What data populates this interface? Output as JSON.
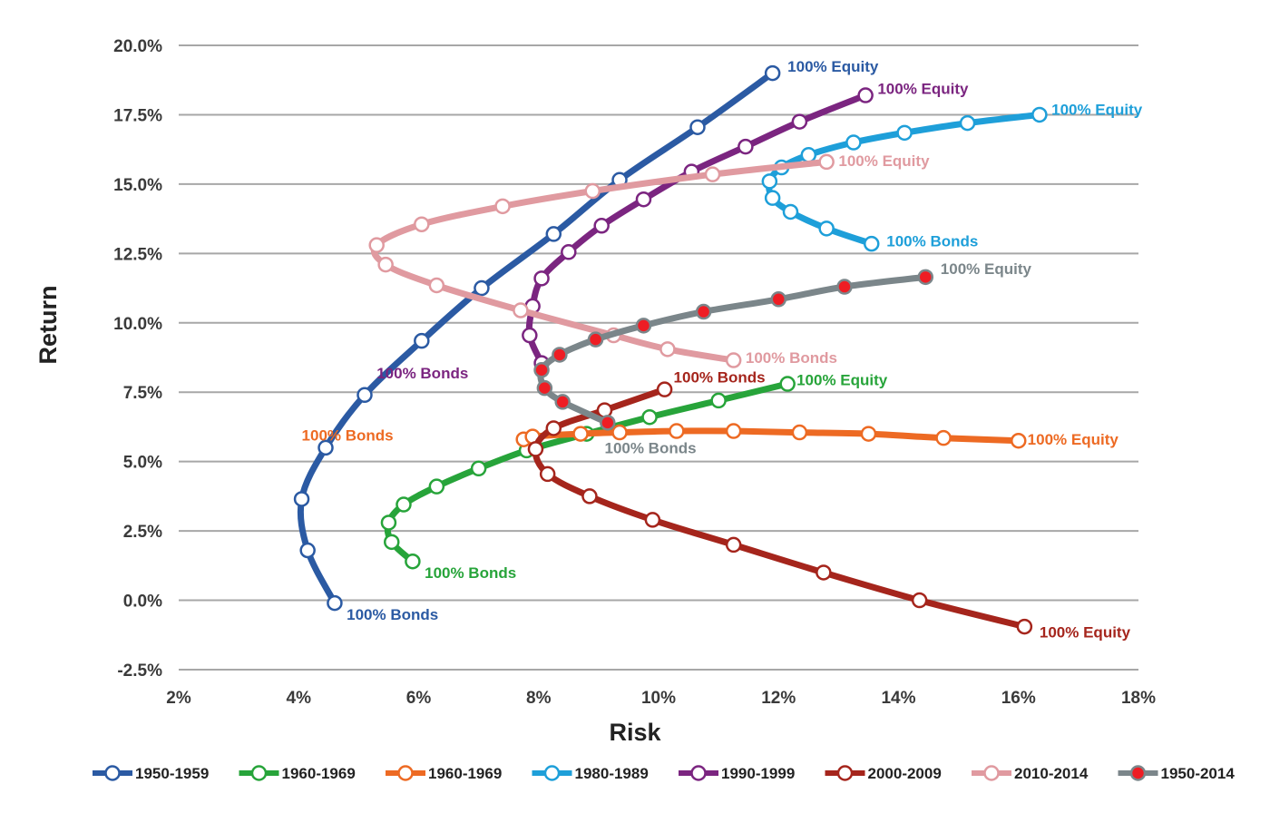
{
  "chart_data": {
    "type": "line",
    "xlabel": "Risk",
    "ylabel": "Return",
    "xlim": [
      2,
      18
    ],
    "ylim": [
      -2.5,
      20
    ],
    "x_ticks": [
      "2%",
      "4%",
      "6%",
      "8%",
      "10%",
      "12%",
      "14%",
      "16%",
      "18%"
    ],
    "x_tick_values": [
      2,
      4,
      6,
      8,
      10,
      12,
      14,
      16,
      18
    ],
    "y_ticks": [
      "-2.5%",
      "0.0%",
      "2.5%",
      "5.0%",
      "7.5%",
      "10.0%",
      "12.5%",
      "15.0%",
      "17.5%",
      "20.0%"
    ],
    "y_tick_values": [
      -2.5,
      0,
      2.5,
      5,
      7.5,
      10,
      12.5,
      15,
      17.5,
      20
    ],
    "grid": "horizontal",
    "legend_position": "bottom",
    "series": [
      {
        "name": "1950-1959",
        "color": "#2b5aa3",
        "marker_fill": "#ffffff",
        "points": [
          [
            4.6,
            -0.1
          ],
          [
            4.15,
            1.8
          ],
          [
            4.05,
            3.65
          ],
          [
            4.45,
            5.5
          ],
          [
            5.1,
            7.4
          ],
          [
            6.05,
            9.35
          ],
          [
            7.05,
            11.25
          ],
          [
            8.25,
            13.2
          ],
          [
            9.35,
            15.15
          ],
          [
            10.65,
            17.05
          ],
          [
            11.9,
            19.0
          ]
        ],
        "labels": [
          {
            "text": "100% Bonds",
            "x": 4.8,
            "y": -0.5
          },
          {
            "text": "100% Equity",
            "x": 12.15,
            "y": 19.25
          }
        ]
      },
      {
        "name": "1960-1969",
        "color": "#27a43a",
        "marker_fill": "#ffffff",
        "points": [
          [
            5.9,
            1.4
          ],
          [
            5.55,
            2.1
          ],
          [
            5.5,
            2.8
          ],
          [
            5.75,
            3.45
          ],
          [
            6.3,
            4.1
          ],
          [
            7.0,
            4.75
          ],
          [
            7.8,
            5.4
          ],
          [
            8.8,
            6.0
          ],
          [
            9.85,
            6.6
          ],
          [
            11.0,
            7.2
          ],
          [
            12.15,
            7.8
          ]
        ],
        "labels": [
          {
            "text": "100% Bonds",
            "x": 6.1,
            "y": 1.0
          },
          {
            "text": "100% Equity",
            "x": 12.3,
            "y": 7.95
          }
        ]
      },
      {
        "name": "1960-1969",
        "color": "#ed6a23",
        "marker_fill": "#ffffff",
        "points": [
          [
            7.75,
            5.8
          ],
          [
            7.9,
            5.9
          ],
          [
            8.7,
            6.0
          ],
          [
            9.35,
            6.05
          ],
          [
            10.3,
            6.1
          ],
          [
            11.25,
            6.1
          ],
          [
            12.35,
            6.05
          ],
          [
            13.5,
            6.0
          ],
          [
            14.75,
            5.85
          ],
          [
            16.0,
            5.75
          ]
        ],
        "labels": [
          {
            "text": "100% Bonds",
            "x": 4.05,
            "y": 5.95
          },
          {
            "text": "100% Equity",
            "x": 16.15,
            "y": 5.8
          }
        ]
      },
      {
        "name": "1980-1989",
        "color": "#1e9fd9",
        "marker_fill": "#ffffff",
        "points": [
          [
            13.55,
            12.85
          ],
          [
            12.8,
            13.4
          ],
          [
            12.2,
            14.0
          ],
          [
            11.9,
            14.5
          ],
          [
            11.85,
            15.1
          ],
          [
            12.05,
            15.6
          ],
          [
            12.5,
            16.05
          ],
          [
            13.25,
            16.5
          ],
          [
            14.1,
            16.85
          ],
          [
            15.15,
            17.2
          ],
          [
            16.35,
            17.5
          ]
        ],
        "labels": [
          {
            "text": "100% Bonds",
            "x": 13.8,
            "y": 12.95
          },
          {
            "text": "100% Equity",
            "x": 16.55,
            "y": 17.7
          }
        ]
      },
      {
        "name": "1990-1999",
        "color": "#7b2580",
        "marker_fill": "#ffffff",
        "points": [
          [
            8.05,
            8.55
          ],
          [
            7.85,
            9.55
          ],
          [
            7.9,
            10.6
          ],
          [
            8.05,
            11.6
          ],
          [
            8.5,
            12.55
          ],
          [
            9.05,
            13.5
          ],
          [
            9.75,
            14.45
          ],
          [
            10.55,
            15.45
          ],
          [
            11.45,
            16.35
          ],
          [
            12.35,
            17.25
          ],
          [
            13.45,
            18.2
          ]
        ],
        "labels": [
          {
            "text": "100% Bonds",
            "x": 5.3,
            "y": 8.2
          },
          {
            "text": "100% Equity",
            "x": 13.65,
            "y": 18.45
          }
        ]
      },
      {
        "name": "2000-2009",
        "color": "#a5251c",
        "marker_fill": "#ffffff",
        "points": [
          [
            10.1,
            7.6
          ],
          [
            9.1,
            6.85
          ],
          [
            8.25,
            6.2
          ],
          [
            7.95,
            5.45
          ],
          [
            8.15,
            4.55
          ],
          [
            8.85,
            3.75
          ],
          [
            9.9,
            2.9
          ],
          [
            11.25,
            2.0
          ],
          [
            12.75,
            1.0
          ],
          [
            14.35,
            0.0
          ],
          [
            16.1,
            -0.95
          ]
        ],
        "labels": [
          {
            "text": "100% Bonds",
            "x": 10.25,
            "y": 8.05
          },
          {
            "text": "100% Equity",
            "x": 16.35,
            "y": -1.15
          }
        ]
      },
      {
        "name": "2010-2014",
        "color": "#e09aa0",
        "marker_fill": "#ffffff",
        "points": [
          [
            11.25,
            8.65
          ],
          [
            10.15,
            9.05
          ],
          [
            9.25,
            9.55
          ],
          [
            7.7,
            10.45
          ],
          [
            6.3,
            11.35
          ],
          [
            5.45,
            12.1
          ],
          [
            5.3,
            12.8
          ],
          [
            6.05,
            13.55
          ],
          [
            7.4,
            14.2
          ],
          [
            8.9,
            14.75
          ],
          [
            10.9,
            15.35
          ],
          [
            12.8,
            15.8
          ]
        ],
        "labels": [
          {
            "text": "100% Bonds",
            "x": 11.45,
            "y": 8.75
          },
          {
            "text": "100% Equity",
            "x": 13.0,
            "y": 15.85
          }
        ]
      },
      {
        "name": "1950-2014",
        "color": "#7b868a",
        "marker_fill": "#ee1d24",
        "points": [
          [
            9.15,
            6.4
          ],
          [
            8.4,
            7.15
          ],
          [
            8.1,
            7.65
          ],
          [
            8.05,
            8.3
          ],
          [
            8.35,
            8.85
          ],
          [
            8.95,
            9.4
          ],
          [
            9.75,
            9.9
          ],
          [
            10.75,
            10.4
          ],
          [
            12.0,
            10.85
          ],
          [
            13.1,
            11.3
          ],
          [
            14.45,
            11.65
          ]
        ],
        "labels": [
          {
            "text": "100% Bonds",
            "x": 9.1,
            "y": 5.5
          },
          {
            "text": "100% Equity",
            "x": 14.7,
            "y": 11.95
          }
        ]
      }
    ]
  }
}
